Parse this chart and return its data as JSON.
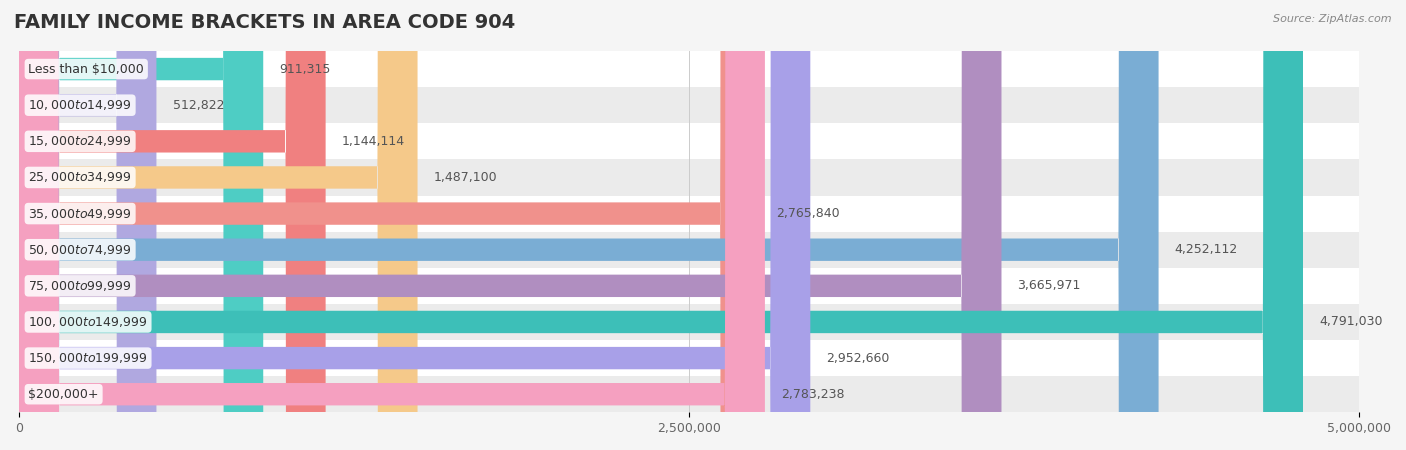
{
  "title": "FAMILY INCOME BRACKETS IN AREA CODE 904",
  "source": "Source: ZipAtlas.com",
  "categories": [
    "Less than $10,000",
    "$10,000 to $14,999",
    "$15,000 to $24,999",
    "$25,000 to $34,999",
    "$35,000 to $49,999",
    "$50,000 to $74,999",
    "$75,000 to $99,999",
    "$100,000 to $149,999",
    "$150,000 to $199,999",
    "$200,000+"
  ],
  "values": [
    911315,
    512822,
    1144114,
    1487100,
    2765840,
    4252112,
    3665971,
    4791030,
    2952660,
    2783238
  ],
  "value_labels": [
    "911,315",
    "512,822",
    "1,144,114",
    "1,487,100",
    "2,765,840",
    "4,252,112",
    "3,665,971",
    "4,791,030",
    "2,952,660",
    "2,783,238"
  ],
  "bar_colors": [
    "#4ecdc4",
    "#b0a8e0",
    "#f08080",
    "#f5c98a",
    "#f0918c",
    "#7aadd4",
    "#b08ec0",
    "#3dbfb8",
    "#a8a0e8",
    "#f5a0c0"
  ],
  "background_color": "#f5f5f5",
  "row_colors": [
    "#ffffff",
    "#f0f0f0"
  ],
  "xlim": [
    0,
    5000000
  ],
  "xticks": [
    0,
    2500000,
    5000000
  ],
  "xtick_labels": [
    "0",
    "2,500,000",
    "5,000,000"
  ],
  "title_fontsize": 14,
  "label_fontsize": 9,
  "value_fontsize": 9
}
